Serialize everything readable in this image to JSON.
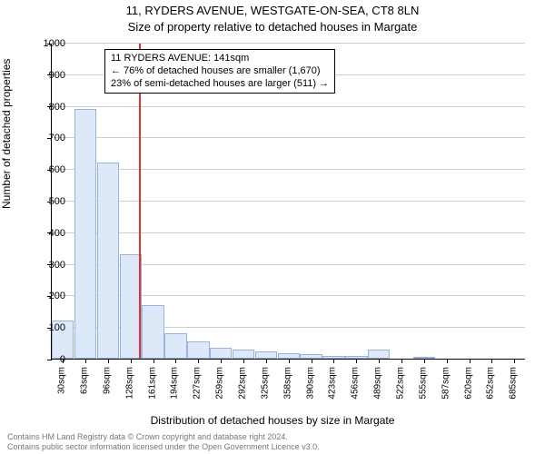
{
  "title_line1": "11, RYDERS AVENUE, WESTGATE-ON-SEA, CT8 8LN",
  "title_line2": "Size of property relative to detached houses in Margate",
  "ylabel": "Number of detached properties",
  "xlabel": "Distribution of detached houses by size in Margate",
  "footer1": "Contains HM Land Registry data © Crown copyright and database right 2024.",
  "footer2": "Contains public sector information licensed under the Open Government Licence v3.0.",
  "annotation": {
    "line1": "11 RYDERS AVENUE: 141sqm",
    "line2": "← 76% of detached houses are smaller (1,670)",
    "line3": "23% of semi-detached houses are larger (511) →"
  },
  "chart": {
    "type": "bar",
    "ylim": [
      0,
      1000
    ],
    "ytick_step": 100,
    "bar_fill": "#dde8f8",
    "bar_stroke": "#96b4de",
    "grid_color": "#cfcfcf",
    "refline_color": "#e03030",
    "refline_x": 141,
    "categories": [
      "30sqm",
      "63sqm",
      "96sqm",
      "128sqm",
      "161sqm",
      "194sqm",
      "227sqm",
      "259sqm",
      "292sqm",
      "325sqm",
      "358sqm",
      "390sqm",
      "423sqm",
      "456sqm",
      "489sqm",
      "522sqm",
      "555sqm",
      "587sqm",
      "620sqm",
      "652sqm",
      "685sqm"
    ],
    "values": [
      120,
      790,
      620,
      330,
      170,
      80,
      55,
      35,
      28,
      22,
      18,
      14,
      10,
      8,
      30,
      0,
      5,
      0,
      0,
      0,
      0
    ]
  },
  "style": {
    "title_fontsize": 13,
    "axis_label_fontsize": 12,
    "tick_fontsize": 11,
    "xtick_fontsize": 10,
    "footer_fontsize": 9,
    "footer_color": "#777777",
    "background": "#ffffff"
  }
}
